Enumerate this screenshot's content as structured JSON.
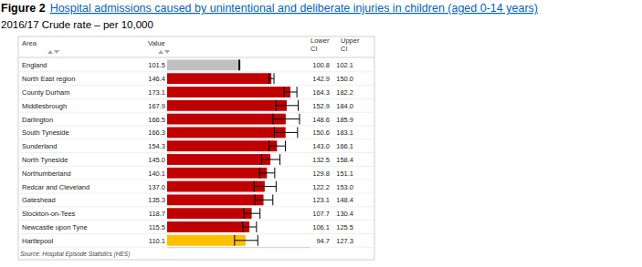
{
  "chart_data": {
    "type": "bar",
    "orientation": "horizontal",
    "figure_label": "Figure 2",
    "title": "Hospital admissions caused by unintentional and deliberate injuries in children (aged 0-14 years)",
    "subtitle": "2016/17 Crude rate – per 10,000",
    "source": "Source: Hospital Episode Statistics (HES)",
    "columns": [
      "Area",
      "Value",
      "Lower CI",
      "Upper CI"
    ],
    "categories": [
      "England",
      "North East region",
      "County Durham",
      "Middlesbrough",
      "Darlington",
      "South Tyneside",
      "Sunderland",
      "North Tyneside",
      "Northumberland",
      "Redcar and Cleveland",
      "Gateshead",
      "Stockton-on-Tees",
      "Newcastle upon Tyne",
      "Hartlepool"
    ],
    "values": [
      101.5,
      146.4,
      173.1,
      167.9,
      166.5,
      166.3,
      154.3,
      145.0,
      140.1,
      137.0,
      135.3,
      118.7,
      115.5,
      110.1
    ],
    "value_labels": [
      "101.5",
      "146.4",
      "173.1",
      "167.9",
      "166.5",
      "166.3",
      "154.3",
      "145.0",
      "140.1",
      "137.0",
      "135.3",
      "118.7",
      "115.5",
      "110.1"
    ],
    "ci_lower": [
      100.8,
      142.9,
      164.3,
      152.9,
      148.6,
      150.6,
      143.0,
      132.5,
      129.8,
      122.2,
      123.1,
      107.7,
      106.1,
      94.7
    ],
    "ci_lower_labels": [
      "100.8",
      "142.9",
      "164.3",
      "152.9",
      "148.6",
      "150.6",
      "143.0",
      "132.5",
      "129.8",
      "122.2",
      "123.1",
      "107.7",
      "106.1",
      "94.7"
    ],
    "ci_upper": [
      102.1,
      150.0,
      182.2,
      184.0,
      185.9,
      183.1,
      166.1,
      158.4,
      151.1,
      153.0,
      148.4,
      130.4,
      125.5,
      127.3
    ],
    "ci_upper_labels": [
      "102.1",
      "150.0",
      "182.2",
      "184.0",
      "185.9",
      "183.1",
      "166.1",
      "158.4",
      "151.1",
      "153.0",
      "148.4",
      "130.4",
      "125.5",
      "127.3"
    ],
    "colors": [
      "#c0c0c0",
      "#c00000",
      "#c00000",
      "#c00000",
      "#c00000",
      "#c00000",
      "#c00000",
      "#c00000",
      "#c00000",
      "#c00000",
      "#c00000",
      "#c00000",
      "#c00000",
      "#ffc000"
    ],
    "xlim": [
      0,
      200
    ],
    "data_labels": true,
    "tick_labels": false,
    "grid": false
  }
}
